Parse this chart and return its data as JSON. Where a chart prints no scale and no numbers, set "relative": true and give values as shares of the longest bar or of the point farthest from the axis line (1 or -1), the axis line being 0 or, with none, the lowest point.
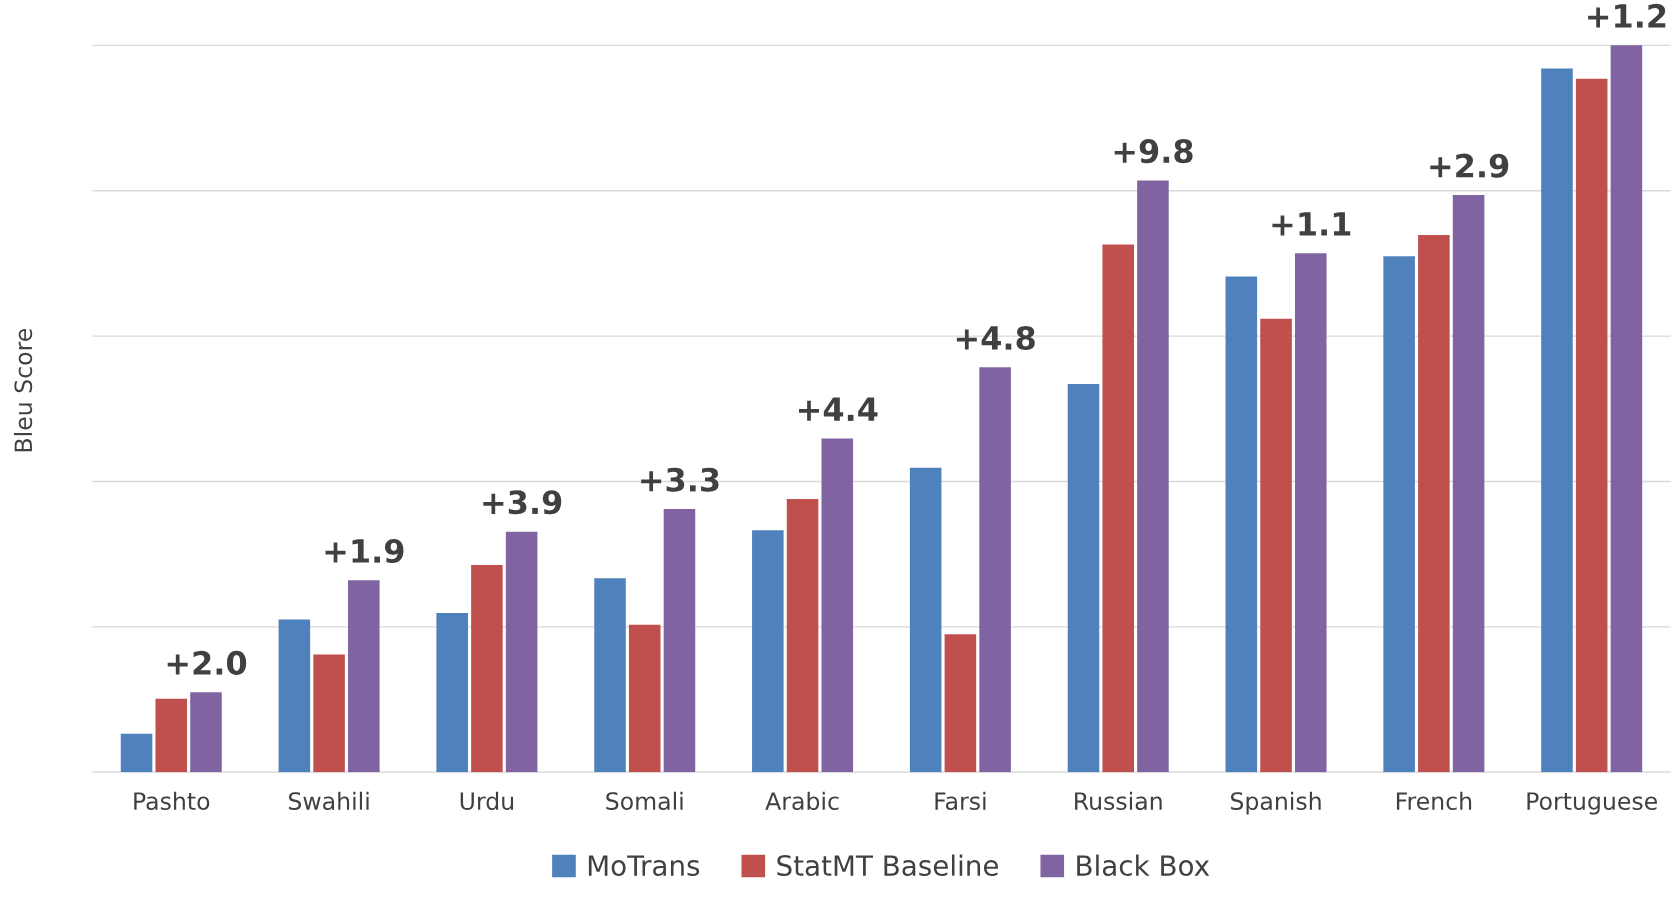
{
  "chart_data": {
    "type": "bar",
    "relative": true,
    "ylabel": "Bleu Score",
    "categories": [
      "Pashto",
      "Swahili",
      "Urdu",
      "Somali",
      "Arabic",
      "Farsi",
      "Russian",
      "Spanish",
      "French",
      "Portuguese"
    ],
    "series": [
      {
        "name": "MoTrans",
        "color": "#4f81bd",
        "values": [
          0.053,
          0.21,
          0.219,
          0.267,
          0.333,
          0.419,
          0.534,
          0.682,
          0.71,
          0.968
        ]
      },
      {
        "name": "StatMT Baseline",
        "color": "#c0504d",
        "values": [
          0.101,
          0.162,
          0.285,
          0.203,
          0.376,
          0.19,
          0.726,
          0.624,
          0.739,
          0.954
        ]
      },
      {
        "name": "Black Box",
        "color": "#8064a2",
        "values": [
          0.11,
          0.264,
          0.331,
          0.362,
          0.459,
          0.557,
          0.814,
          0.714,
          0.794,
          1
        ]
      }
    ],
    "annotations": [
      "+2.0",
      "+1.9",
      "+3.9",
      "+3.3",
      "+4.4",
      "+4.8",
      "+9.8",
      "+1.1",
      "+2.9",
      "+1.2"
    ],
    "grid": "y",
    "legend": "bottom"
  }
}
